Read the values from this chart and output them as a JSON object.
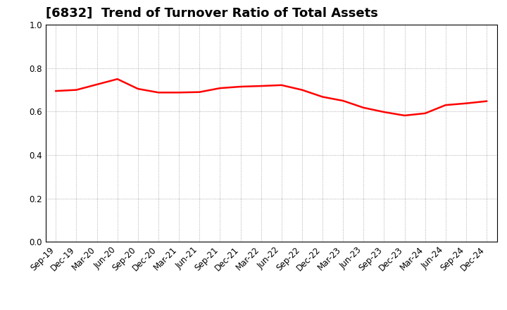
{
  "title": "[6832]  Trend of Turnover Ratio of Total Assets",
  "x_labels": [
    "Sep-19",
    "Dec-19",
    "Mar-20",
    "Jun-20",
    "Sep-20",
    "Dec-20",
    "Mar-21",
    "Jun-21",
    "Sep-21",
    "Dec-21",
    "Mar-22",
    "Jun-22",
    "Sep-22",
    "Dec-22",
    "Mar-23",
    "Jun-23",
    "Sep-23",
    "Dec-23",
    "Mar-24",
    "Jun-24",
    "Sep-24",
    "Dec-24"
  ],
  "values": [
    0.695,
    0.7,
    0.725,
    0.75,
    0.705,
    0.688,
    0.688,
    0.69,
    0.708,
    0.715,
    0.718,
    0.722,
    0.7,
    0.668,
    0.65,
    0.618,
    0.598,
    0.582,
    0.592,
    0.63,
    0.638,
    0.648
  ],
  "line_color": "#FF0000",
  "line_width": 1.8,
  "ylim": [
    0.0,
    1.0
  ],
  "yticks": [
    0.0,
    0.2,
    0.4,
    0.6,
    0.8,
    1.0
  ],
  "background_color": "#ffffff",
  "grid_color": "#999999",
  "title_fontsize": 13,
  "tick_fontsize": 8.5
}
